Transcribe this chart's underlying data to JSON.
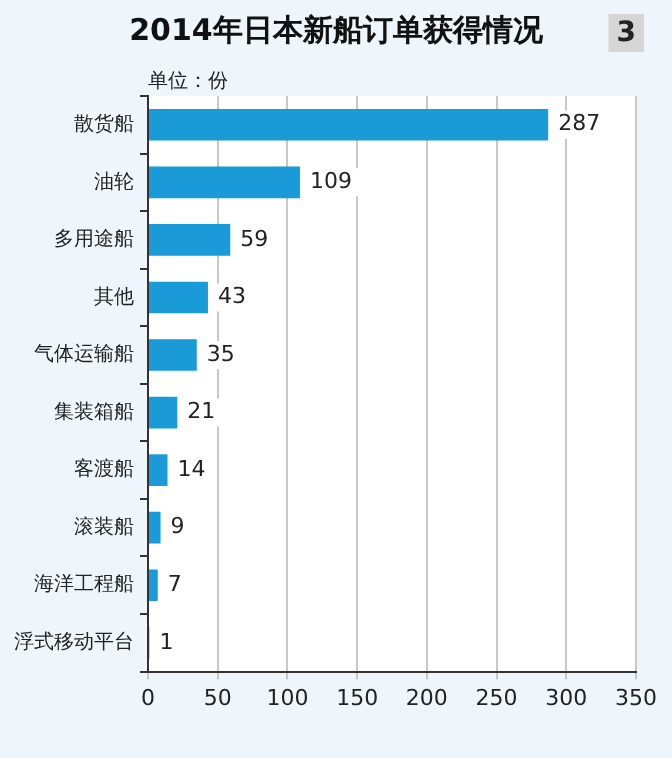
{
  "chart_data": {
    "type": "bar",
    "orientation": "horizontal",
    "title": "2014年日本新船订单获得情况",
    "subtitle": "单位：份",
    "annotations": [
      "3"
    ],
    "categories": [
      "散货船",
      "油轮",
      "多用途船",
      "其他",
      "气体运输船",
      "集装箱船",
      "客渡船",
      "滚装船",
      "海洋工程船",
      "浮式移动平台"
    ],
    "values": [
      287,
      109,
      59,
      43,
      35,
      21,
      14,
      9,
      7,
      1
    ],
    "color": "#1b9ad8",
    "data_labels": true,
    "xlim": [
      0,
      350
    ],
    "xticks": [
      0,
      50,
      100,
      150,
      200,
      250,
      300,
      350
    ],
    "grid": "x",
    "legend": false
  }
}
